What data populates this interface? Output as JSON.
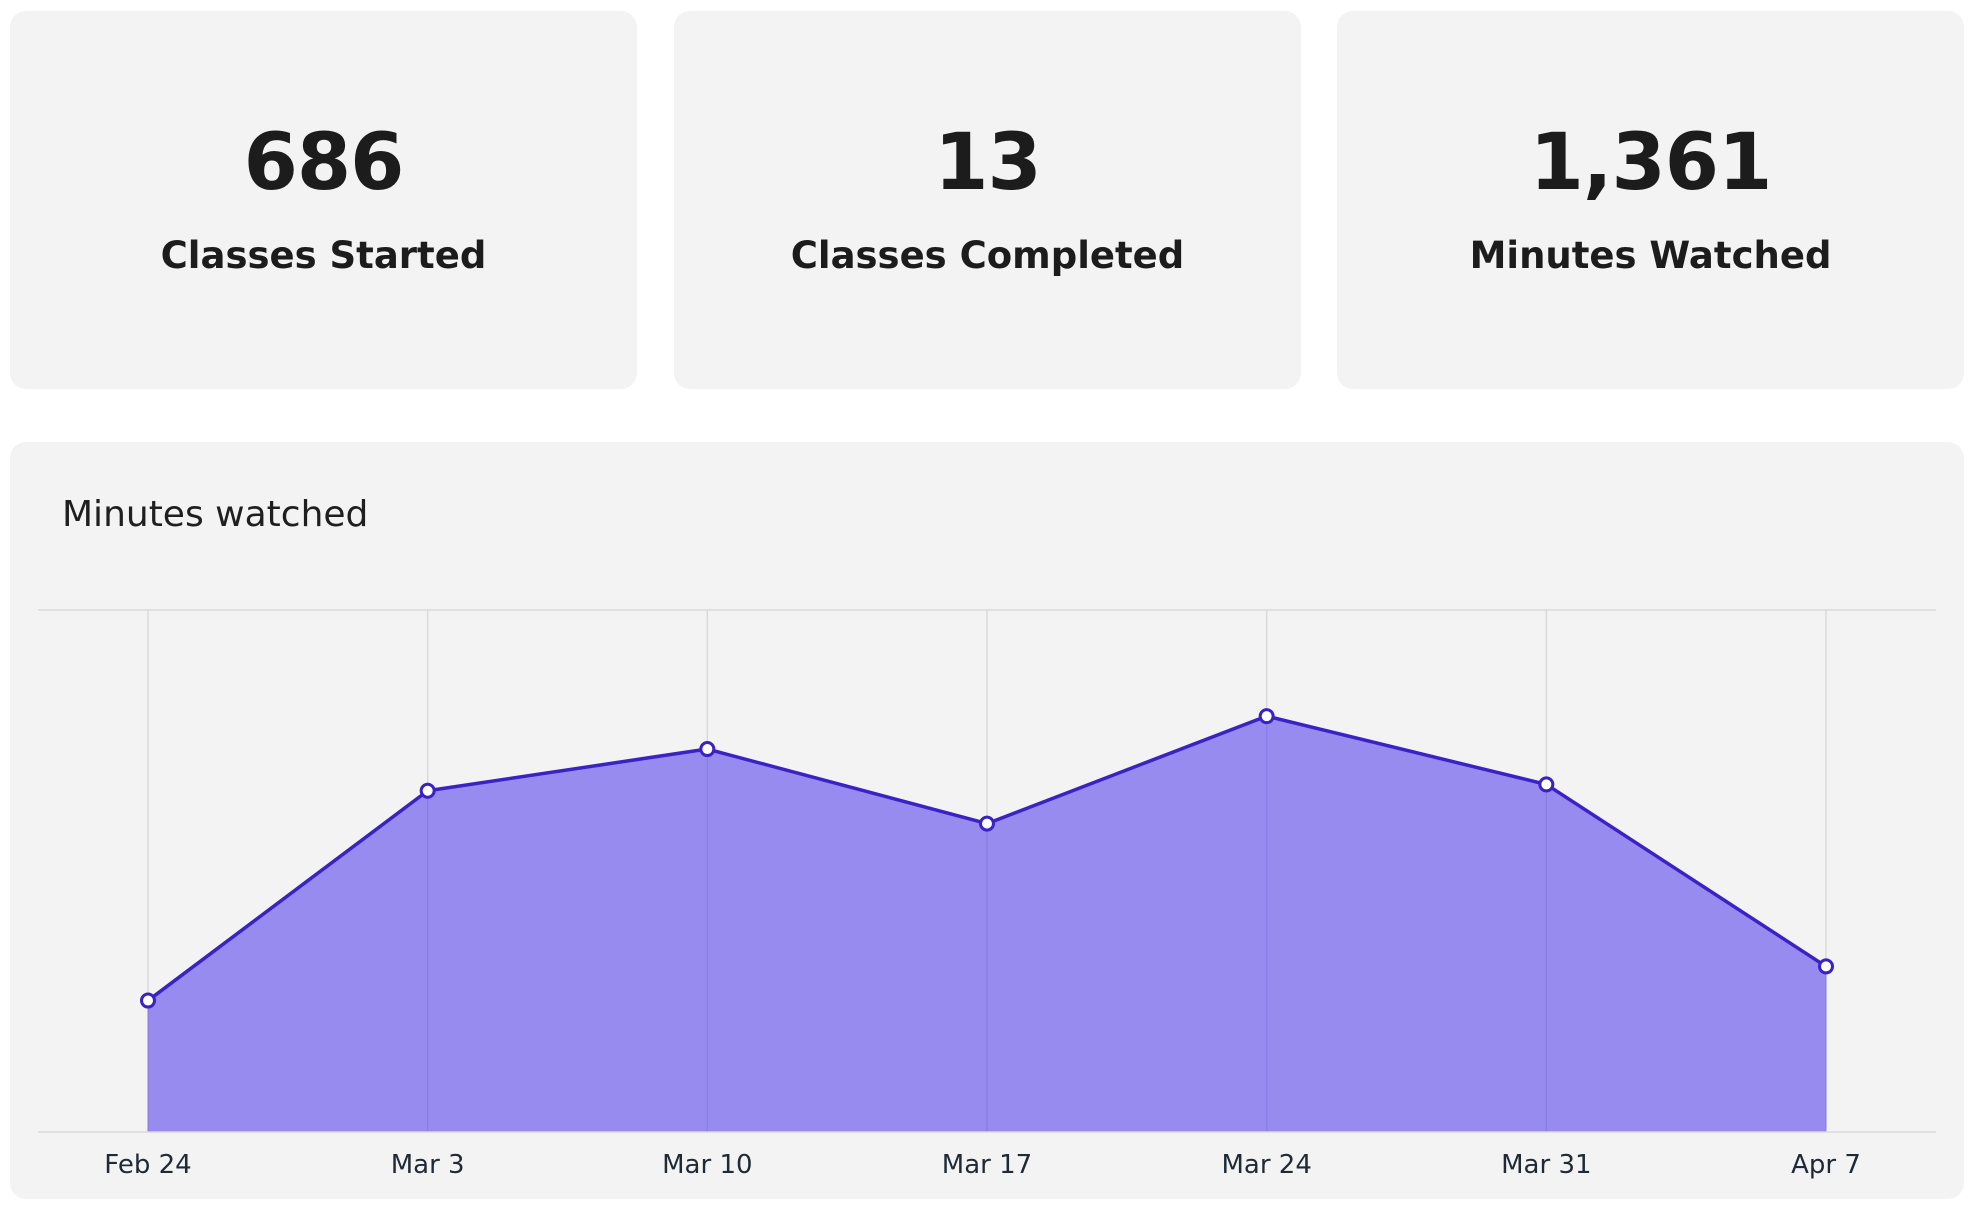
{
  "stats": [
    {
      "value": "686",
      "label": "Classes Started"
    },
    {
      "value": "13",
      "label": "Classes Completed"
    },
    {
      "value": "1,361",
      "label": "Minutes Watched"
    }
  ],
  "chart": {
    "title": "Minutes watched"
  },
  "colors": {
    "card_bg": "#f3f3f3",
    "line": "#3a22c4",
    "area_fill": "#978bf0",
    "grid": "#d9d9d9"
  },
  "chart_data": {
    "type": "area",
    "title": "Minutes watched",
    "xlabel": "",
    "ylabel": "",
    "categories": [
      "Feb 24",
      "Mar 3",
      "Mar 10",
      "Mar 17",
      "Mar 24",
      "Mar 31",
      "Apr 7"
    ],
    "values": [
      104,
      270,
      303,
      244,
      329,
      275,
      131
    ],
    "ylim": [
      0,
      413
    ],
    "grid": true,
    "markers": true
  }
}
